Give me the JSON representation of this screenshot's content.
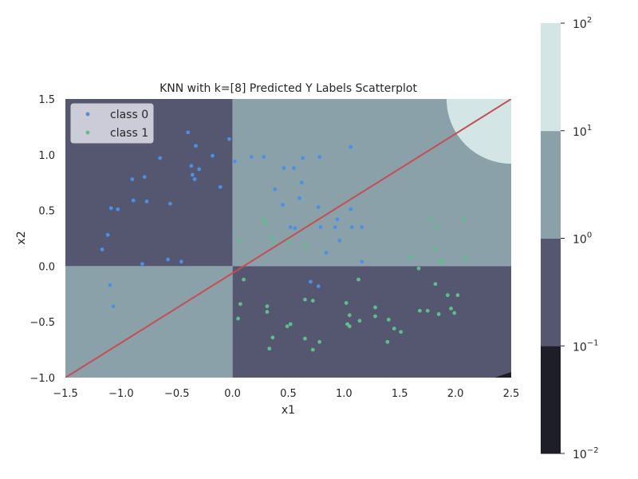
{
  "chart_data": {
    "type": "scatter",
    "title": "KNN with k=[8] Predicted Y Labels Scatterplot",
    "xlabel": "x1",
    "ylabel": "x2",
    "xlim": [
      -1.5,
      2.5
    ],
    "ylim": [
      -1.0,
      1.5
    ],
    "xticks": [
      -1.5,
      -1.0,
      -0.5,
      0.0,
      0.5,
      1.0,
      1.5,
      2.0,
      2.5
    ],
    "xtick_labels": [
      "−1.5",
      "−1.0",
      "−0.5",
      "0.0",
      "0.5",
      "1.0",
      "1.5",
      "2.0",
      "2.5"
    ],
    "yticks": [
      -1.0,
      -0.5,
      0.0,
      0.5,
      1.0,
      1.5
    ],
    "ytick_labels": [
      "−1.0",
      "−0.5",
      "0.0",
      "0.5",
      "1.0",
      "1.5"
    ],
    "grid": false,
    "legend": {
      "location": "top-left",
      "entries": [
        "class 0",
        "class 1"
      ]
    },
    "colors": {
      "class 0": "#4c8fe6",
      "class 1": "#5fbf8a",
      "line": "#c44e52",
      "bands": [
        "#1e1e28",
        "#55566f",
        "#8ba1aa",
        "#d3e5e5"
      ]
    },
    "background_regions": [
      {
        "x": [
          -1.5,
          0.0
        ],
        "y": [
          0.0,
          1.5
        ],
        "level": "10^-1 to 10^0"
      },
      {
        "x": [
          0.0,
          2.5
        ],
        "y": [
          0.0,
          1.5
        ],
        "level": "10^0 to 10^1"
      },
      {
        "x": [
          -1.5,
          0.0
        ],
        "y": [
          -1.0,
          0.0
        ],
        "level": "10^0 to 10^1"
      },
      {
        "x": [
          0.0,
          2.5
        ],
        "y": [
          -1.0,
          0.0
        ],
        "level": "10^-1 to 10^0"
      },
      {
        "region": "top-right corner, outside circle centered (2.5, 1.5) radius 0.58",
        "level": "10^1 to 10^2"
      },
      {
        "region": "bottom-right corner sliver",
        "level": "10^-2 to 10^-1"
      }
    ],
    "line": {
      "x": [
        -1.5,
        2.5
      ],
      "y": [
        -1.0,
        1.5
      ]
    },
    "series": [
      {
        "name": "class 0",
        "points": [
          [
            -0.4,
            1.2
          ],
          [
            -0.33,
            1.08
          ],
          [
            -0.18,
            0.99
          ],
          [
            -0.03,
            1.14
          ],
          [
            0.02,
            0.94
          ],
          [
            -0.65,
            0.97
          ],
          [
            -0.37,
            0.9
          ],
          [
            -0.3,
            0.87
          ],
          [
            -0.36,
            0.82
          ],
          [
            -0.34,
            0.78
          ],
          [
            -0.9,
            0.78
          ],
          [
            -0.79,
            0.8
          ],
          [
            -0.11,
            0.71
          ],
          [
            -0.89,
            0.59
          ],
          [
            -0.77,
            0.58
          ],
          [
            -0.56,
            0.56
          ],
          [
            -1.09,
            0.52
          ],
          [
            -1.03,
            0.51
          ],
          [
            -1.12,
            0.28
          ],
          [
            -1.17,
            0.15
          ],
          [
            -0.58,
            0.06
          ],
          [
            -0.46,
            0.04
          ],
          [
            -0.81,
            0.02
          ],
          [
            -1.1,
            -0.17
          ],
          [
            -1.07,
            -0.36
          ],
          [
            0.17,
            0.98
          ],
          [
            0.28,
            0.98
          ],
          [
            0.63,
            0.97
          ],
          [
            0.78,
            0.98
          ],
          [
            1.06,
            1.07
          ],
          [
            0.46,
            0.88
          ],
          [
            0.55,
            0.88
          ],
          [
            0.62,
            0.75
          ],
          [
            0.38,
            0.69
          ],
          [
            0.6,
            0.61
          ],
          [
            0.45,
            0.55
          ],
          [
            0.77,
            0.53
          ],
          [
            1.06,
            0.51
          ],
          [
            0.94,
            0.42
          ],
          [
            0.52,
            0.35
          ],
          [
            0.56,
            0.34
          ],
          [
            0.79,
            0.35
          ],
          [
            0.92,
            0.35
          ],
          [
            1.07,
            0.35
          ],
          [
            1.16,
            0.35
          ],
          [
            0.96,
            0.23
          ],
          [
            0.84,
            0.12
          ],
          [
            1.16,
            0.04
          ],
          [
            0.7,
            -0.14
          ],
          [
            0.77,
            -0.18
          ]
        ]
      },
      {
        "name": "class 1",
        "points": [
          [
            0.28,
            0.42
          ],
          [
            0.3,
            0.38
          ],
          [
            0.35,
            0.25
          ],
          [
            0.38,
            0.2
          ],
          [
            0.5,
            0.22
          ],
          [
            0.66,
            0.18
          ],
          [
            0.06,
            0.23
          ],
          [
            0.1,
            -0.12
          ],
          [
            0.07,
            -0.34
          ],
          [
            0.05,
            -0.47
          ],
          [
            0.31,
            -0.36
          ],
          [
            0.31,
            -0.41
          ],
          [
            0.36,
            -0.64
          ],
          [
            0.33,
            -0.74
          ],
          [
            0.49,
            -0.54
          ],
          [
            0.52,
            -0.52
          ],
          [
            0.65,
            -0.3
          ],
          [
            0.72,
            -0.31
          ],
          [
            0.65,
            -0.65
          ],
          [
            0.72,
            -0.75
          ],
          [
            0.78,
            -0.68
          ],
          [
            1.02,
            -0.33
          ],
          [
            1.05,
            -0.44
          ],
          [
            1.03,
            -0.52
          ],
          [
            1.05,
            -0.54
          ],
          [
            1.13,
            -0.12
          ],
          [
            1.14,
            -0.49
          ],
          [
            1.28,
            -0.37
          ],
          [
            1.28,
            -0.45
          ],
          [
            1.4,
            -0.48
          ],
          [
            1.45,
            -0.56
          ],
          [
            1.51,
            -0.59
          ],
          [
            1.39,
            -0.68
          ],
          [
            1.6,
            0.08
          ],
          [
            1.67,
            -0.02
          ],
          [
            1.78,
            0.42
          ],
          [
            1.83,
            0.35
          ],
          [
            1.88,
            0.05
          ],
          [
            1.82,
            0.15
          ],
          [
            1.87,
            0.04
          ],
          [
            1.82,
            -0.16
          ],
          [
            1.93,
            -0.26
          ],
          [
            2.02,
            -0.26
          ],
          [
            2.08,
            0.42
          ],
          [
            2.09,
            0.07
          ],
          [
            1.96,
            -0.38
          ],
          [
            1.99,
            -0.42
          ],
          [
            1.68,
            -0.4
          ],
          [
            1.75,
            -0.4
          ],
          [
            1.85,
            -0.43
          ]
        ]
      }
    ],
    "colorbar": {
      "scale": "log",
      "range": [
        0.01,
        100
      ],
      "ticks": [
        {
          "base": "10",
          "exp": "−2"
        },
        {
          "base": "10",
          "exp": "−1"
        },
        {
          "base": "10",
          "exp": "0"
        },
        {
          "base": "10",
          "exp": "1"
        },
        {
          "base": "10",
          "exp": "2"
        }
      ]
    }
  }
}
